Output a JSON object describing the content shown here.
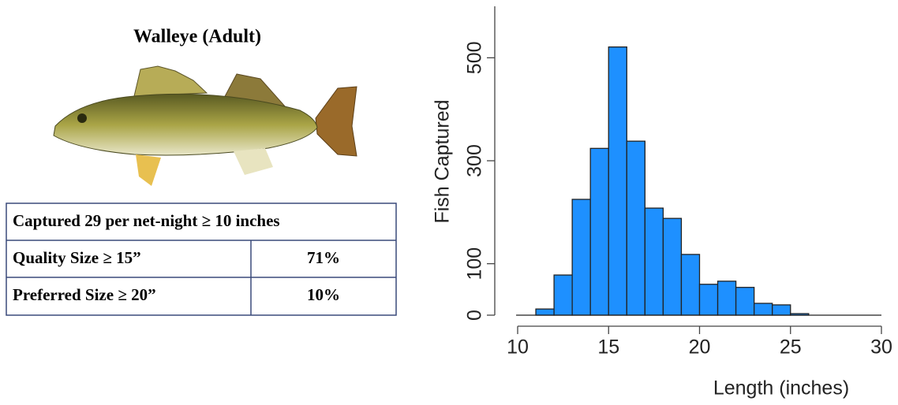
{
  "panel": {
    "title": "Walleye (Adult)",
    "table": {
      "rows": [
        [
          "Captured 29 per net-night ≥ 10 inches"
        ],
        [
          "Quality Size ≥  15”",
          "71%"
        ],
        [
          "Preferred Size ≥  20”",
          "10%"
        ]
      ]
    }
  },
  "chart_data": {
    "type": "histogram",
    "x_label": "Length (inches)",
    "y_label": "Fish Captured",
    "bins": [
      11,
      12,
      13,
      14,
      15,
      16,
      17,
      18,
      19,
      20,
      21,
      22,
      23,
      24,
      25,
      26
    ],
    "values": [
      12,
      78,
      225,
      324,
      521,
      338,
      208,
      188,
      118,
      60,
      66,
      54,
      23,
      20,
      3
    ],
    "color": "#1e90ff",
    "xlim": [
      10,
      30
    ],
    "xticks": [
      10,
      15,
      20,
      25,
      30
    ],
    "ylim": [
      0,
      600
    ],
    "yticks": [
      0,
      100,
      300,
      500
    ]
  }
}
